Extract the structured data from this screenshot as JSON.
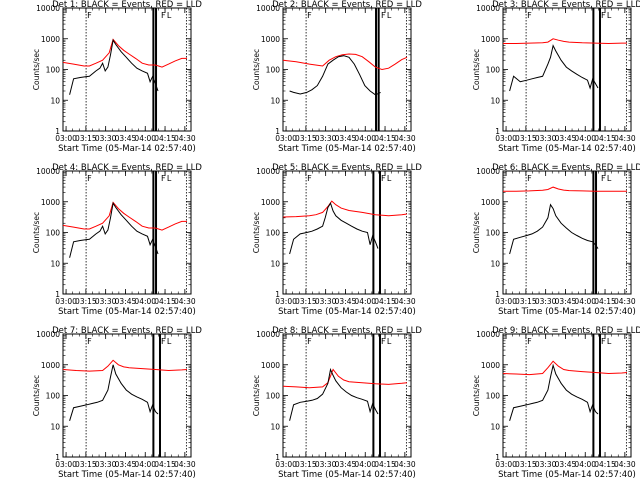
{
  "figure": {
    "background": "#ffffff"
  },
  "chart_data": {
    "type": "line",
    "yscale": "log",
    "ylim": [
      1,
      10000
    ],
    "xlim_minutes": [
      0,
      97
    ],
    "ylabel": "Counts/sec",
    "xlabel": "Start Time (05-Mar-14 02:57:40)",
    "x_tick_labels": [
      "03:00",
      "03:15",
      "03:30",
      "03:45",
      "04:00",
      "04:15",
      "04:30"
    ],
    "x_tick_minutes": [
      2.33,
      17.33,
      32.33,
      47.33,
      62.33,
      77.33,
      92.33
    ],
    "y_tick_labels": [
      "1",
      "10",
      "100",
      "1000",
      "10000"
    ],
    "y_tick_values": [
      1,
      10,
      100,
      1000,
      10000
    ],
    "series_colors": {
      "events": "#000000",
      "lld": "#ff0000"
    },
    "markers": {
      "dotted_minutes": [
        17.5,
        93.5
      ],
      "thick_minutes": [
        68.5,
        73.5
      ],
      "labels": [
        {
          "minute": 17.5,
          "text": "F"
        },
        {
          "minute": 73.5,
          "text": "F"
        },
        {
          "minute": 78.0,
          "text": "L"
        }
      ]
    },
    "panels": [
      {
        "title": "Det 1: BLACK = Events, RED = LLD",
        "thick_minutes": [
          68.5,
          70.5
        ],
        "events": {
          "x": [
            5,
            8,
            13,
            17,
            20,
            25,
            28,
            30,
            32,
            34,
            36,
            38,
            40,
            44,
            48,
            52,
            56,
            60,
            64,
            66,
            68,
            70,
            72
          ],
          "y": [
            15,
            50,
            55,
            58,
            60,
            90,
            110,
            160,
            90,
            120,
            300,
            900,
            650,
            380,
            250,
            160,
            110,
            90,
            75,
            40,
            60,
            35,
            20
          ]
        },
        "lld": {
          "x": [
            0,
            8,
            16,
            20,
            25,
            30,
            35,
            38,
            42,
            46,
            50,
            55,
            60,
            65,
            70,
            75,
            80,
            85,
            90,
            94
          ],
          "y": [
            170,
            150,
            130,
            130,
            160,
            200,
            350,
            950,
            600,
            420,
            320,
            230,
            160,
            140,
            140,
            120,
            150,
            190,
            230,
            230
          ]
        }
      },
      {
        "title": "Det 2: BLACK = Events, RED = LLD",
        "thick_minutes": [
          70.5,
          72.5
        ],
        "events": {
          "x": [
            5,
            8,
            13,
            18,
            22,
            26,
            30,
            34,
            38,
            42,
            46,
            50,
            54,
            58,
            62,
            66,
            70,
            74
          ],
          "y": [
            20,
            18,
            16,
            18,
            22,
            30,
            60,
            150,
            200,
            260,
            280,
            250,
            150,
            70,
            30,
            20,
            15,
            18
          ]
        },
        "lld": {
          "x": [
            0,
            10,
            20,
            30,
            35,
            40,
            45,
            50,
            55,
            60,
            65,
            70,
            75,
            80,
            85,
            90,
            94
          ],
          "y": [
            200,
            180,
            150,
            130,
            200,
            260,
            300,
            320,
            310,
            260,
            180,
            120,
            100,
            110,
            150,
            210,
            250
          ]
        }
      },
      {
        "title": "Det 3: BLACK = Events, RED = LLD",
        "thick_minutes": [
          68.5,
          73.5
        ],
        "events": {
          "x": [
            5,
            8,
            13,
            18,
            22,
            26,
            30,
            34,
            36,
            38,
            40,
            44,
            48,
            52,
            56,
            60,
            64,
            66,
            68,
            70,
            72
          ],
          "y": [
            20,
            60,
            40,
            45,
            50,
            55,
            60,
            150,
            250,
            600,
            400,
            200,
            120,
            90,
            70,
            55,
            45,
            25,
            50,
            35,
            25
          ]
        },
        "lld": {
          "x": [
            0,
            10,
            20,
            30,
            34,
            38,
            42,
            46,
            50,
            60,
            70,
            80,
            90,
            94
          ],
          "y": [
            700,
            700,
            720,
            740,
            780,
            1000,
            900,
            820,
            780,
            740,
            720,
            700,
            720,
            720
          ]
        }
      },
      {
        "title": "Det 4: BLACK = Events, RED = LLD",
        "thick_minutes": [
          68.5,
          70.5
        ],
        "events": {
          "x": [
            5,
            8,
            13,
            17,
            20,
            25,
            28,
            30,
            32,
            34,
            36,
            38,
            40,
            44,
            48,
            52,
            56,
            60,
            64,
            66,
            68,
            70,
            72
          ],
          "y": [
            15,
            50,
            55,
            58,
            60,
            90,
            110,
            160,
            90,
            120,
            300,
            900,
            650,
            380,
            250,
            160,
            110,
            90,
            75,
            40,
            60,
            35,
            20
          ]
        },
        "lld": {
          "x": [
            0,
            8,
            16,
            20,
            25,
            30,
            35,
            38,
            42,
            46,
            50,
            55,
            60,
            65,
            70,
            75,
            80,
            85,
            90,
            94
          ],
          "y": [
            170,
            150,
            130,
            130,
            160,
            200,
            350,
            950,
            600,
            420,
            320,
            230,
            160,
            140,
            140,
            120,
            150,
            190,
            230,
            230
          ]
        }
      },
      {
        "title": "Det 5: BLACK = Events, RED = LLD",
        "thick_minutes": [
          68.5,
          73.5
        ],
        "events": {
          "x": [
            5,
            8,
            13,
            18,
            22,
            26,
            30,
            32,
            34,
            36,
            38,
            40,
            44,
            48,
            52,
            56,
            60,
            64,
            66,
            68,
            70,
            72
          ],
          "y": [
            20,
            60,
            90,
            100,
            110,
            130,
            160,
            300,
            650,
            900,
            500,
            350,
            250,
            200,
            160,
            130,
            110,
            100,
            40,
            80,
            50,
            30
          ]
        },
        "lld": {
          "x": [
            0,
            10,
            20,
            25,
            30,
            34,
            37,
            40,
            44,
            50,
            60,
            70,
            80,
            90,
            94
          ],
          "y": [
            320,
            330,
            350,
            380,
            450,
            700,
            1050,
            800,
            620,
            520,
            450,
            380,
            350,
            380,
            400
          ]
        }
      },
      {
        "title": "Det 6: BLACK = Events, RED = LLD",
        "thick_minutes": [
          68.5,
          70.5
        ],
        "events": {
          "x": [
            5,
            8,
            13,
            18,
            22,
            26,
            30,
            34,
            36,
            38,
            40,
            44,
            48,
            52,
            56,
            60,
            64,
            68,
            70,
            72
          ],
          "y": [
            20,
            60,
            70,
            80,
            90,
            110,
            150,
            300,
            800,
            600,
            350,
            200,
            140,
            100,
            80,
            65,
            55,
            50,
            40,
            30
          ]
        },
        "lld": {
          "x": [
            0,
            10,
            20,
            30,
            34,
            38,
            42,
            46,
            50,
            60,
            70,
            80,
            90,
            94
          ],
          "y": [
            2200,
            2200,
            2250,
            2350,
            2500,
            3000,
            2600,
            2400,
            2300,
            2250,
            2200,
            2200,
            2200,
            2200
          ]
        }
      },
      {
        "title": "Det 7: BLACK = Events, RED = LLD",
        "thick_minutes": [
          68.5,
          73.5
        ],
        "events": {
          "x": [
            5,
            8,
            13,
            18,
            22,
            26,
            30,
            34,
            36,
            38,
            40,
            44,
            48,
            52,
            56,
            60,
            64,
            66,
            68,
            70,
            72
          ],
          "y": [
            15,
            40,
            45,
            50,
            55,
            60,
            70,
            150,
            400,
            1000,
            500,
            250,
            150,
            110,
            90,
            75,
            60,
            30,
            50,
            30,
            25
          ]
        },
        "lld": {
          "x": [
            0,
            10,
            20,
            30,
            34,
            38,
            42,
            46,
            50,
            60,
            70,
            80,
            90,
            94
          ],
          "y": [
            700,
            650,
            620,
            650,
            900,
            1400,
            1000,
            850,
            800,
            750,
            700,
            650,
            680,
            700
          ]
        }
      },
      {
        "title": "Det 8: BLACK = Events, RED = LLD",
        "thick_minutes": [
          68.5,
          73.5
        ],
        "events": {
          "x": [
            5,
            8,
            13,
            18,
            22,
            26,
            30,
            34,
            36,
            38,
            40,
            44,
            48,
            52,
            56,
            60,
            64,
            66,
            68,
            70,
            72
          ],
          "y": [
            15,
            50,
            60,
            65,
            70,
            80,
            110,
            250,
            700,
            450,
            300,
            180,
            130,
            100,
            85,
            75,
            65,
            30,
            55,
            35,
            25
          ]
        },
        "lld": {
          "x": [
            0,
            10,
            20,
            30,
            34,
            38,
            42,
            46,
            50,
            60,
            70,
            80,
            90,
            94
          ],
          "y": [
            200,
            190,
            180,
            190,
            260,
            700,
            420,
            320,
            280,
            260,
            240,
            230,
            250,
            260
          ]
        }
      },
      {
        "title": "Det 9: BLACK = Events, RED = LLD",
        "thick_minutes": [
          68.5,
          73.5
        ],
        "events": {
          "x": [
            5,
            8,
            13,
            18,
            22,
            26,
            30,
            34,
            36,
            38,
            40,
            44,
            48,
            52,
            56,
            60,
            64,
            66,
            68,
            70,
            72
          ],
          "y": [
            15,
            40,
            45,
            50,
            55,
            60,
            70,
            150,
            400,
            950,
            500,
            250,
            150,
            110,
            90,
            75,
            60,
            30,
            50,
            30,
            25
          ]
        },
        "lld": {
          "x": [
            0,
            10,
            20,
            30,
            34,
            38,
            42,
            46,
            50,
            60,
            70,
            80,
            90,
            94
          ],
          "y": [
            520,
            500,
            480,
            520,
            800,
            1300,
            900,
            700,
            650,
            600,
            560,
            520,
            540,
            560
          ]
        }
      }
    ]
  }
}
